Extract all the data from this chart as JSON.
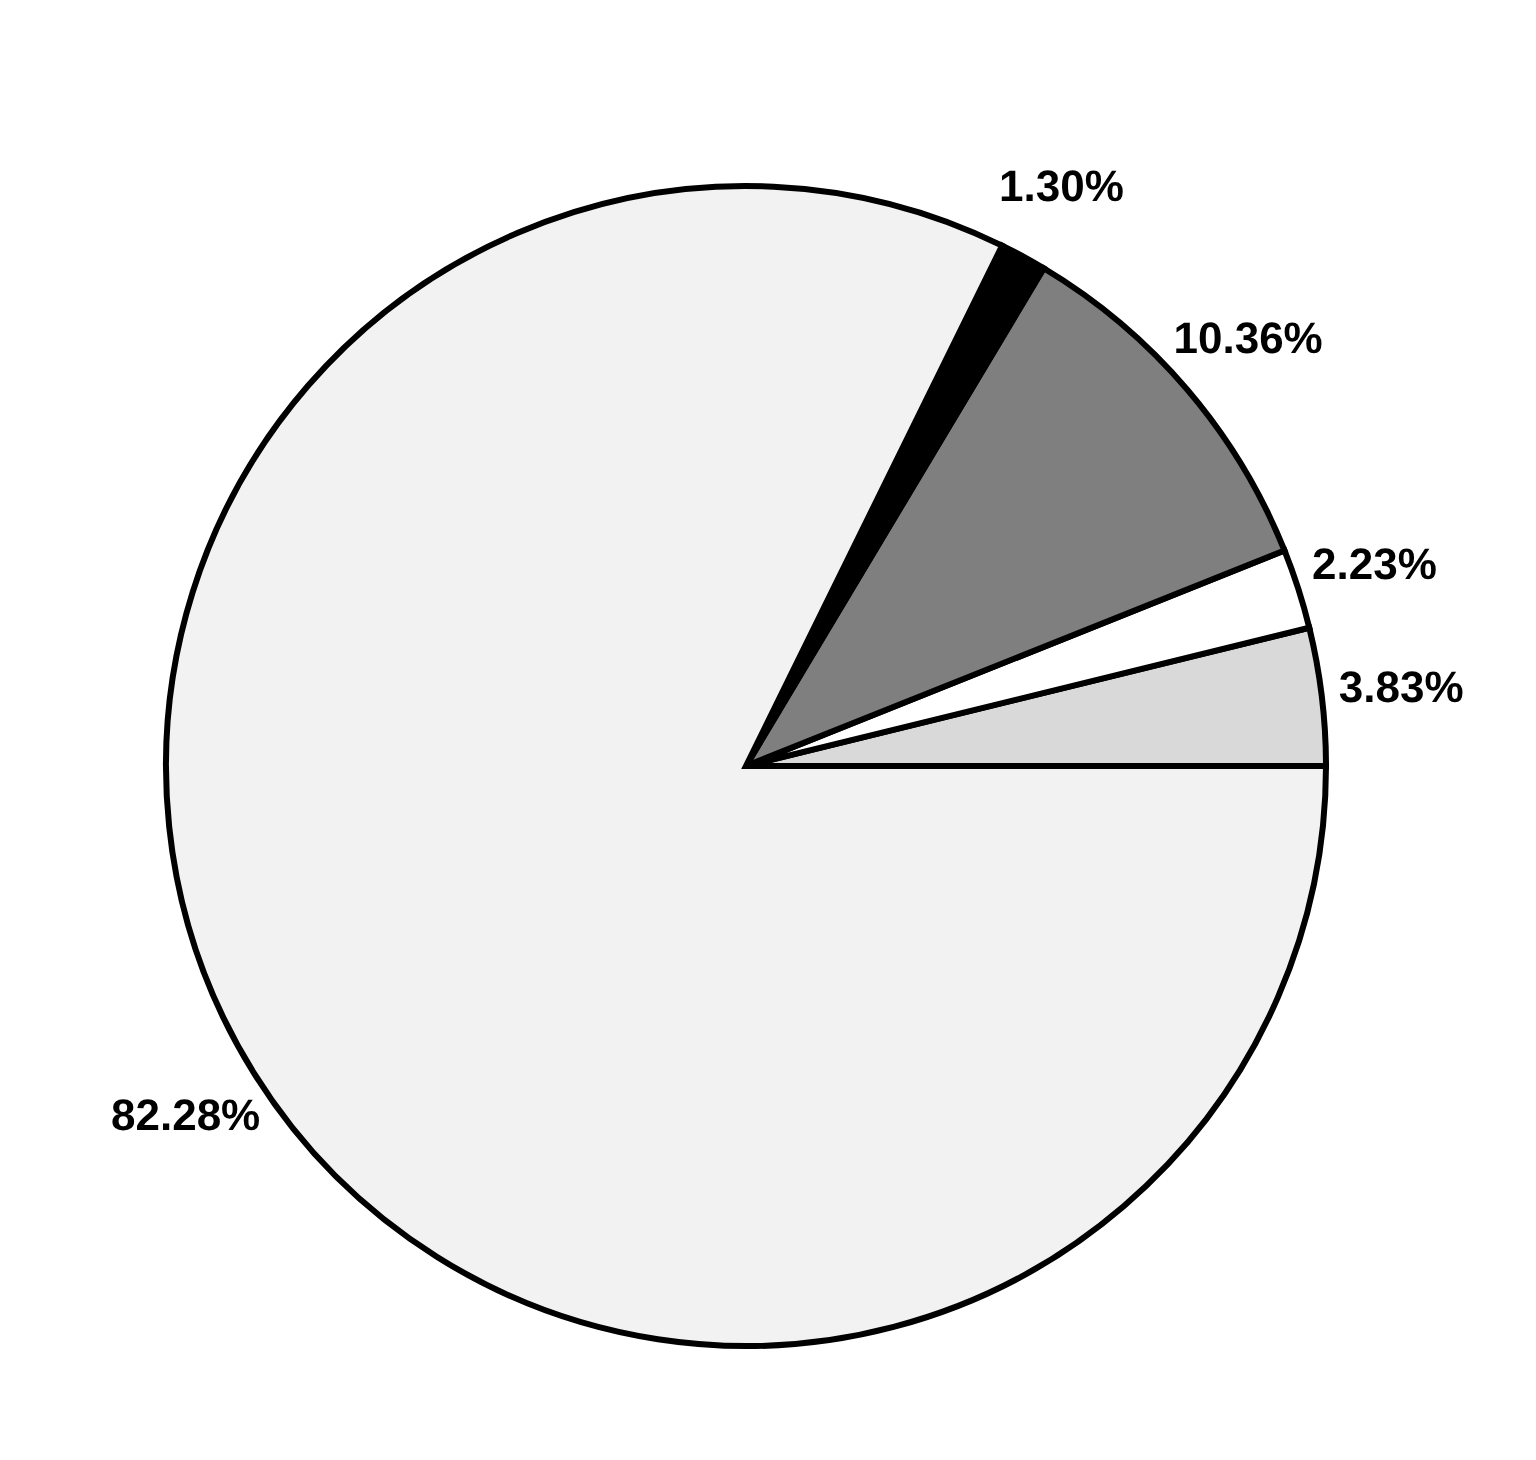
{
  "chart_data": {
    "type": "pie",
    "categories": [
      null,
      null,
      null,
      null,
      null
    ],
    "values": [
      3.83,
      2.23,
      10.36,
      1.3,
      82.28
    ],
    "colors": [
      "#d9d9d9",
      "#ffffff",
      "#7f7f7f",
      "#000000",
      "#f2f2f2"
    ],
    "value_labels": [
      "3.83%",
      "2.23%",
      "10.36%",
      "1.30%",
      "82.28%"
    ]
  }
}
